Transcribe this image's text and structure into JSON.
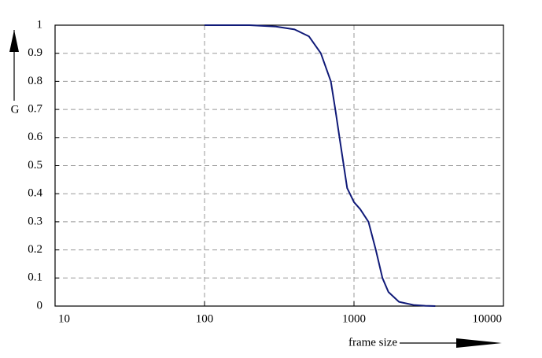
{
  "chart_data": {
    "type": "line",
    "x_label": "frame size",
    "y_label": "G",
    "log_x": true,
    "grid": true,
    "xlim": [
      10,
      10000
    ],
    "xticks": [
      10,
      100,
      1000,
      10000
    ],
    "ylim": [
      0,
      1
    ],
    "yticks": [
      0,
      0.1,
      0.2,
      0.3,
      0.4,
      0.5,
      0.6,
      0.7,
      0.8,
      0.9,
      1
    ],
    "series": [
      {
        "color": "#101a78",
        "x": [
          100,
          200,
          300,
          400,
          500,
          600,
          700,
          750,
          800,
          900,
          1000,
          1100,
          1250,
          1400,
          1550,
          1700,
          2000,
          2500,
          3000,
          3500
        ],
        "values": [
          1,
          1,
          0.995,
          0.985,
          0.96,
          0.9,
          0.8,
          0.7,
          0.6,
          0.42,
          0.37,
          0.345,
          0.3,
          0.2,
          0.1,
          0.05,
          0.015,
          0.004,
          0.001,
          0
        ]
      }
    ]
  }
}
